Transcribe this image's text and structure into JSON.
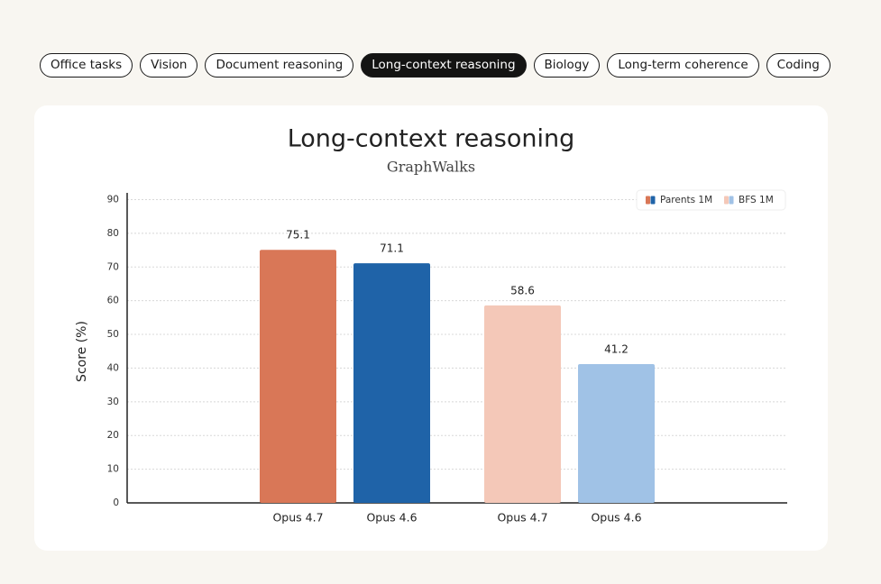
{
  "tabs": [
    {
      "label": "Office tasks",
      "selected": false
    },
    {
      "label": "Vision",
      "selected": false
    },
    {
      "label": "Document reasoning",
      "selected": false
    },
    {
      "label": "Long-context reasoning",
      "selected": true
    },
    {
      "label": "Biology",
      "selected": false
    },
    {
      "label": "Long-term coherence",
      "selected": false
    },
    {
      "label": "Coding",
      "selected": false
    }
  ],
  "chart_data": {
    "type": "bar",
    "title": "Long-context reasoning",
    "subtitle": "GraphWalks",
    "y_label": "Score (%)",
    "groups": [
      {
        "name": "Parents 1M",
        "categories": [
          "Opus 4.7",
          "Opus 4.6"
        ],
        "values": [
          75.1,
          71.1
        ],
        "colors": [
          "#d97757",
          "#1f63a8"
        ]
      },
      {
        "name": "BFS 1M",
        "categories": [
          "Opus 4.7",
          "Opus 4.6"
        ],
        "values": [
          58.6,
          41.2
        ],
        "colors": [
          "#f4c8b8",
          "#a0c2e6"
        ]
      }
    ],
    "ylim": [
      0,
      92
    ],
    "yticks": [
      0,
      10,
      20,
      30,
      40,
      50,
      60,
      70,
      80,
      90
    ],
    "grid": true,
    "legend": "top-right"
  }
}
